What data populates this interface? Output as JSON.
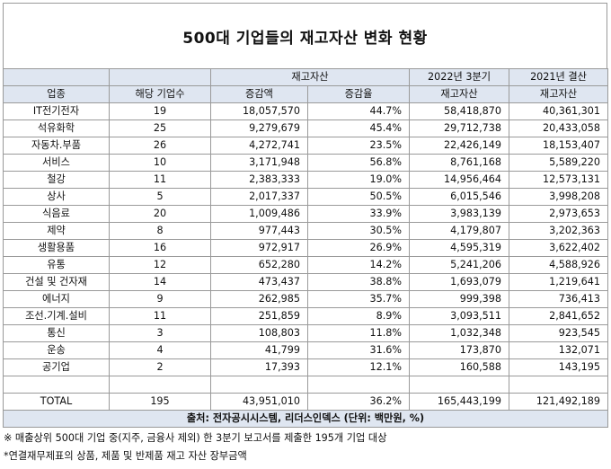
{
  "title": "500대 기업들의 재고자산 변화 현황",
  "header": {
    "group_inventory": "재고자산",
    "period_q3": "2022년 3분기",
    "period_2021": "2021년 결산",
    "col_industry": "업종",
    "col_count": "해당 기업수",
    "col_change": "증감액",
    "col_rate": "증감율",
    "col_inv_q3": "재고자산",
    "col_inv_2021": "재고자산"
  },
  "rows": [
    {
      "industry": "IT전기전자",
      "count": "19",
      "change": "18,057,570",
      "rate": "44.7%",
      "q3": "58,418,870",
      "y2021": "40,361,301"
    },
    {
      "industry": "석유화학",
      "count": "25",
      "change": "9,279,679",
      "rate": "45.4%",
      "q3": "29,712,738",
      "y2021": "20,433,058"
    },
    {
      "industry": "자동차.부품",
      "count": "26",
      "change": "4,272,741",
      "rate": "23.5%",
      "q3": "22,426,149",
      "y2021": "18,153,407"
    },
    {
      "industry": "서비스",
      "count": "10",
      "change": "3,171,948",
      "rate": "56.8%",
      "q3": "8,761,168",
      "y2021": "5,589,220"
    },
    {
      "industry": "철강",
      "count": "11",
      "change": "2,383,333",
      "rate": "19.0%",
      "q3": "14,956,464",
      "y2021": "12,573,131"
    },
    {
      "industry": "상사",
      "count": "5",
      "change": "2,017,337",
      "rate": "50.5%",
      "q3": "6,015,546",
      "y2021": "3,998,208"
    },
    {
      "industry": "식음료",
      "count": "20",
      "change": "1,009,486",
      "rate": "33.9%",
      "q3": "3,983,139",
      "y2021": "2,973,653"
    },
    {
      "industry": "제약",
      "count": "8",
      "change": "977,443",
      "rate": "30.5%",
      "q3": "4,179,807",
      "y2021": "3,202,363"
    },
    {
      "industry": "생활용품",
      "count": "16",
      "change": "972,917",
      "rate": "26.9%",
      "q3": "4,595,319",
      "y2021": "3,622,402"
    },
    {
      "industry": "유통",
      "count": "12",
      "change": "652,280",
      "rate": "14.2%",
      "q3": "5,241,206",
      "y2021": "4,588,926"
    },
    {
      "industry": "건설 및 건자재",
      "count": "14",
      "change": "473,437",
      "rate": "38.8%",
      "q3": "1,693,079",
      "y2021": "1,219,641"
    },
    {
      "industry": "에너지",
      "count": "9",
      "change": "262,985",
      "rate": "35.7%",
      "q3": "999,398",
      "y2021": "736,413"
    },
    {
      "industry": "조선.기계.설비",
      "count": "11",
      "change": "251,859",
      "rate": "8.9%",
      "q3": "3,093,511",
      "y2021": "2,841,652"
    },
    {
      "industry": "통신",
      "count": "3",
      "change": "108,803",
      "rate": "11.8%",
      "q3": "1,032,348",
      "y2021": "923,545"
    },
    {
      "industry": "운송",
      "count": "4",
      "change": "41,799",
      "rate": "31.6%",
      "q3": "173,870",
      "y2021": "132,071"
    },
    {
      "industry": "공기업",
      "count": "2",
      "change": "17,393",
      "rate": "12.1%",
      "q3": "160,588",
      "y2021": "143,195"
    }
  ],
  "total": {
    "industry": "TOTAL",
    "count": "195",
    "change": "43,951,010",
    "rate": "36.2%",
    "q3": "165,443,199",
    "y2021": "121,492,189"
  },
  "source": "출처: 전자공시시스템, 리더스인덱스 (단위: 백만원, %)",
  "notes": [
    "※ 매출상위 500대 기업 중(지주, 금융사 제외) 한 3분기 보고서를 제출한 195개 기업 대상",
    "*연결재무제표의 상품, 제품 및 반제품 재고 자산 장부금액"
  ]
}
